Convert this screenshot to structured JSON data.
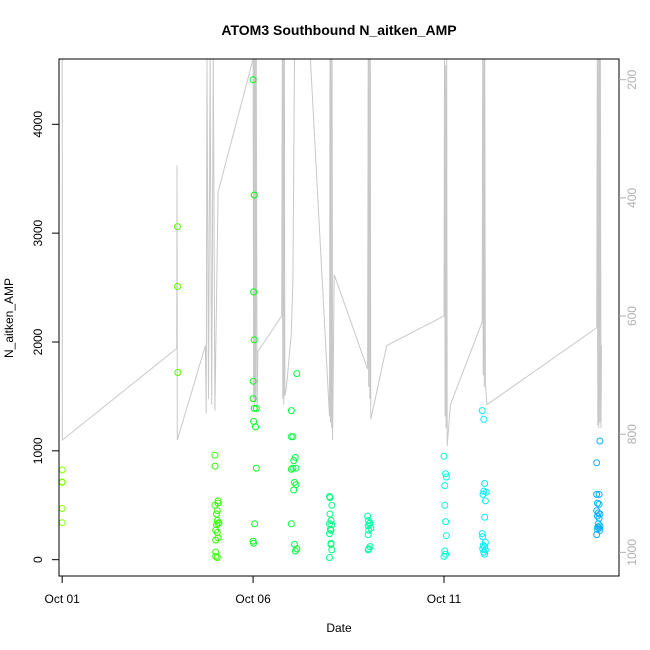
{
  "chart_data": {
    "type": "scatter",
    "title": "ATOM3 Southbound N_aitken_AMP",
    "xlabel": "Date",
    "ylabel": "N_aitken_AMP",
    "xlim": [
      "2016-09-30T22:00",
      "2016-10-15T14:00"
    ],
    "ylim": [
      -150,
      4600
    ],
    "x_ticks": [
      {
        "date": "2016-10-01",
        "label": "Oct 01"
      },
      {
        "date": "2016-10-06",
        "label": "Oct 06"
      },
      {
        "date": "2016-10-11",
        "label": "Oct 11"
      }
    ],
    "y_ticks": [
      0,
      1000,
      2000,
      3000,
      4000
    ],
    "right_axis": {
      "quantity": "pressure",
      "reversed": true,
      "range": [
        1040,
        165
      ],
      "ticks": [
        200,
        400,
        600,
        800,
        1000
      ],
      "line_color": "#c8c8c8"
    },
    "grid": false,
    "legend": "none",
    "point_colors": {
      "Oct 01": "#80ff00",
      "Oct 04": "#55ff00",
      "Oct 05": "#33ff00",
      "Oct 06": "#00ff1a",
      "Oct 07": "#00ff40",
      "Oct 08": "#00ff80",
      "Oct 09": "#00ffa0",
      "Oct 11": "#00ffe0",
      "Oct 12": "#00f0ff",
      "Oct 15": "#00b0ff"
    },
    "points": [
      {
        "t": "2016-10-01T00:00",
        "y": 710,
        "c": "Oct 01"
      },
      {
        "t": "2016-10-01T00:00",
        "y": 715,
        "c": "Oct 01"
      },
      {
        "t": "2016-10-01T00:00",
        "y": 470,
        "c": "Oct 01"
      },
      {
        "t": "2016-10-01T00:00",
        "y": 340,
        "c": "Oct 01"
      },
      {
        "t": "2016-10-01T00:05",
        "y": 825,
        "c": "Oct 01"
      },
      {
        "t": "2016-10-04T00:30",
        "y": 3060,
        "c": "Oct 04"
      },
      {
        "t": "2016-10-04T00:30",
        "y": 2510,
        "c": "Oct 04"
      },
      {
        "t": "2016-10-04T00:40",
        "y": 1720,
        "c": "Oct 04"
      },
      {
        "t": "2016-10-05T00:00",
        "y": 960,
        "c": "Oct 05"
      },
      {
        "t": "2016-10-05T00:05",
        "y": 860,
        "c": "Oct 05"
      },
      {
        "t": "2016-10-05T00:00",
        "y": 500,
        "c": "Oct 05"
      },
      {
        "t": "2016-10-05T02:00",
        "y": 540,
        "c": "Oct 05"
      },
      {
        "t": "2016-10-05T02:00",
        "y": 520,
        "c": "Oct 05"
      },
      {
        "t": "2016-10-05T01:30",
        "y": 450,
        "c": "Oct 05"
      },
      {
        "t": "2016-10-05T01:00",
        "y": 420,
        "c": "Oct 05"
      },
      {
        "t": "2016-10-05T01:30",
        "y": 360,
        "c": "Oct 05"
      },
      {
        "t": "2016-10-05T02:00",
        "y": 330,
        "c": "Oct 05"
      },
      {
        "t": "2016-10-05T01:00",
        "y": 320,
        "c": "Oct 05"
      },
      {
        "t": "2016-10-05T02:30",
        "y": 340,
        "c": "Oct 05"
      },
      {
        "t": "2016-10-05T00:30",
        "y": 270,
        "c": "Oct 05"
      },
      {
        "t": "2016-10-05T01:30",
        "y": 250,
        "c": "Oct 05"
      },
      {
        "t": "2016-10-05T02:00",
        "y": 200,
        "c": "Oct 05"
      },
      {
        "t": "2016-10-05T00:30",
        "y": 180,
        "c": "Oct 05"
      },
      {
        "t": "2016-10-05T00:30",
        "y": 70,
        "c": "Oct 05"
      },
      {
        "t": "2016-10-05T00:30",
        "y": 30,
        "c": "Oct 05"
      },
      {
        "t": "2016-10-05T01:30",
        "y": 20,
        "c": "Oct 05"
      },
      {
        "t": "2016-10-06T00:00",
        "y": 4410,
        "c": "Oct 06"
      },
      {
        "t": "2016-10-06T00:40",
        "y": 3350,
        "c": "Oct 06"
      },
      {
        "t": "2016-10-06T00:20",
        "y": 2460,
        "c": "Oct 06"
      },
      {
        "t": "2016-10-06T00:40",
        "y": 2020,
        "c": "Oct 06"
      },
      {
        "t": "2016-10-06T00:00",
        "y": 1640,
        "c": "Oct 06"
      },
      {
        "t": "2016-10-06T00:00",
        "y": 1480,
        "c": "Oct 06"
      },
      {
        "t": "2016-10-06T02:00",
        "y": 1390,
        "c": "Oct 06"
      },
      {
        "t": "2016-10-06T00:40",
        "y": 1390,
        "c": "Oct 06"
      },
      {
        "t": "2016-10-06T00:20",
        "y": 1270,
        "c": "Oct 06"
      },
      {
        "t": "2016-10-06T01:30",
        "y": 1220,
        "c": "Oct 06"
      },
      {
        "t": "2016-10-06T02:00",
        "y": 840,
        "c": "Oct 06"
      },
      {
        "t": "2016-10-06T01:00",
        "y": 330,
        "c": "Oct 06"
      },
      {
        "t": "2016-10-06T00:00",
        "y": 170,
        "c": "Oct 06"
      },
      {
        "t": "2016-10-06T00:20",
        "y": 150,
        "c": "Oct 06"
      },
      {
        "t": "2016-10-07T00:00",
        "y": 1370,
        "c": "Oct 07"
      },
      {
        "t": "2016-10-07T00:00",
        "y": 1130,
        "c": "Oct 07"
      },
      {
        "t": "2016-10-07T01:00",
        "y": 1130,
        "c": "Oct 07"
      },
      {
        "t": "2016-10-07T02:30",
        "y": 940,
        "c": "Oct 07"
      },
      {
        "t": "2016-10-07T01:30",
        "y": 910,
        "c": "Oct 07"
      },
      {
        "t": "2016-10-07T01:00",
        "y": 840,
        "c": "Oct 07"
      },
      {
        "t": "2016-10-07T03:00",
        "y": 840,
        "c": "Oct 07"
      },
      {
        "t": "2016-10-07T00:00",
        "y": 830,
        "c": "Oct 07"
      },
      {
        "t": "2016-10-07T03:30",
        "y": 1710,
        "c": "Oct 07"
      },
      {
        "t": "2016-10-07T02:00",
        "y": 710,
        "c": "Oct 07"
      },
      {
        "t": "2016-10-07T03:00",
        "y": 690,
        "c": "Oct 07"
      },
      {
        "t": "2016-10-07T01:30",
        "y": 640,
        "c": "Oct 07"
      },
      {
        "t": "2016-10-07T00:00",
        "y": 330,
        "c": "Oct 07"
      },
      {
        "t": "2016-10-07T02:00",
        "y": 140,
        "c": "Oct 07"
      },
      {
        "t": "2016-10-07T03:30",
        "y": 100,
        "c": "Oct 07"
      },
      {
        "t": "2016-10-07T02:30",
        "y": 80,
        "c": "Oct 07"
      },
      {
        "t": "2016-10-08T00:00",
        "y": 580,
        "c": "Oct 08"
      },
      {
        "t": "2016-10-08T00:20",
        "y": 570,
        "c": "Oct 08"
      },
      {
        "t": "2016-10-08T01:30",
        "y": 500,
        "c": "Oct 08"
      },
      {
        "t": "2016-10-08T00:20",
        "y": 420,
        "c": "Oct 08"
      },
      {
        "t": "2016-10-08T01:00",
        "y": 360,
        "c": "Oct 08"
      },
      {
        "t": "2016-10-08T00:00",
        "y": 330,
        "c": "Oct 08"
      },
      {
        "t": "2016-10-08T01:30",
        "y": 320,
        "c": "Oct 08"
      },
      {
        "t": "2016-10-08T00:40",
        "y": 280,
        "c": "Oct 08"
      },
      {
        "t": "2016-10-08T01:00",
        "y": 270,
        "c": "Oct 08"
      },
      {
        "t": "2016-10-08T00:00",
        "y": 240,
        "c": "Oct 08"
      },
      {
        "t": "2016-10-08T01:00",
        "y": 150,
        "c": "Oct 08"
      },
      {
        "t": "2016-10-08T01:00",
        "y": 140,
        "c": "Oct 08"
      },
      {
        "t": "2016-10-08T01:30",
        "y": 90,
        "c": "Oct 08"
      },
      {
        "t": "2016-10-08T00:00",
        "y": 20,
        "c": "Oct 08"
      },
      {
        "t": "2016-10-09T00:00",
        "y": 400,
        "c": "Oct 09"
      },
      {
        "t": "2016-10-09T00:30",
        "y": 360,
        "c": "Oct 09"
      },
      {
        "t": "2016-10-09T01:30",
        "y": 340,
        "c": "Oct 09"
      },
      {
        "t": "2016-10-09T01:00",
        "y": 330,
        "c": "Oct 09"
      },
      {
        "t": "2016-10-09T00:20",
        "y": 310,
        "c": "Oct 09"
      },
      {
        "t": "2016-10-09T02:00",
        "y": 290,
        "c": "Oct 09"
      },
      {
        "t": "2016-10-09T00:40",
        "y": 270,
        "c": "Oct 09"
      },
      {
        "t": "2016-10-09T00:20",
        "y": 230,
        "c": "Oct 09"
      },
      {
        "t": "2016-10-09T01:30",
        "y": 120,
        "c": "Oct 09"
      },
      {
        "t": "2016-10-09T00:40",
        "y": 100,
        "c": "Oct 09"
      },
      {
        "t": "2016-10-09T00:20",
        "y": 90,
        "c": "Oct 09"
      },
      {
        "t": "2016-10-11T00:00",
        "y": 950,
        "c": "Oct 11"
      },
      {
        "t": "2016-10-11T01:00",
        "y": 790,
        "c": "Oct 11"
      },
      {
        "t": "2016-10-11T01:30",
        "y": 760,
        "c": "Oct 11"
      },
      {
        "t": "2016-10-11T00:30",
        "y": 680,
        "c": "Oct 11"
      },
      {
        "t": "2016-10-11T00:30",
        "y": 500,
        "c": "Oct 11"
      },
      {
        "t": "2016-10-11T01:00",
        "y": 350,
        "c": "Oct 11"
      },
      {
        "t": "2016-10-11T01:30",
        "y": 220,
        "c": "Oct 11"
      },
      {
        "t": "2016-10-11T00:30",
        "y": 80,
        "c": "Oct 11"
      },
      {
        "t": "2016-10-11T01:00",
        "y": 50,
        "c": "Oct 11"
      },
      {
        "t": "2016-10-11T00:00",
        "y": 30,
        "c": "Oct 11"
      },
      {
        "t": "2016-10-12T00:00",
        "y": 1370,
        "c": "Oct 12"
      },
      {
        "t": "2016-10-12T01:00",
        "y": 1290,
        "c": "Oct 12"
      },
      {
        "t": "2016-10-12T01:30",
        "y": 700,
        "c": "Oct 12"
      },
      {
        "t": "2016-10-12T01:00",
        "y": 630,
        "c": "Oct 12"
      },
      {
        "t": "2016-10-12T02:30",
        "y": 620,
        "c": "Oct 12"
      },
      {
        "t": "2016-10-12T00:30",
        "y": 600,
        "c": "Oct 12"
      },
      {
        "t": "2016-10-12T02:00",
        "y": 540,
        "c": "Oct 12"
      },
      {
        "t": "2016-10-12T01:30",
        "y": 390,
        "c": "Oct 12"
      },
      {
        "t": "2016-10-12T00:00",
        "y": 240,
        "c": "Oct 12"
      },
      {
        "t": "2016-10-12T00:20",
        "y": 210,
        "c": "Oct 12"
      },
      {
        "t": "2016-10-12T02:00",
        "y": 160,
        "c": "Oct 12"
      },
      {
        "t": "2016-10-12T00:40",
        "y": 130,
        "c": "Oct 12"
      },
      {
        "t": "2016-10-12T01:30",
        "y": 120,
        "c": "Oct 12"
      },
      {
        "t": "2016-10-12T00:20",
        "y": 100,
        "c": "Oct 12"
      },
      {
        "t": "2016-10-12T02:00",
        "y": 90,
        "c": "Oct 12"
      },
      {
        "t": "2016-10-12T01:00",
        "y": 70,
        "c": "Oct 12"
      },
      {
        "t": "2016-10-12T01:30",
        "y": 50,
        "c": "Oct 12"
      },
      {
        "t": "2016-10-15T00:00",
        "y": 890,
        "c": "Oct 15"
      },
      {
        "t": "2016-10-15T02:00",
        "y": 1090,
        "c": "Oct 15"
      },
      {
        "t": "2016-10-15T00:00",
        "y": 600,
        "c": "Oct 15"
      },
      {
        "t": "2016-10-15T01:30",
        "y": 600,
        "c": "Oct 15"
      },
      {
        "t": "2016-10-15T00:30",
        "y": 520,
        "c": "Oct 15"
      },
      {
        "t": "2016-10-15T01:30",
        "y": 510,
        "c": "Oct 15"
      },
      {
        "t": "2016-10-15T00:00",
        "y": 450,
        "c": "Oct 15"
      },
      {
        "t": "2016-10-15T01:00",
        "y": 430,
        "c": "Oct 15"
      },
      {
        "t": "2016-10-15T02:00",
        "y": 420,
        "c": "Oct 15"
      },
      {
        "t": "2016-10-15T00:30",
        "y": 400,
        "c": "Oct 15"
      },
      {
        "t": "2016-10-15T01:30",
        "y": 380,
        "c": "Oct 15"
      },
      {
        "t": "2016-10-15T01:00",
        "y": 330,
        "c": "Oct 15"
      },
      {
        "t": "2016-10-15T02:00",
        "y": 310,
        "c": "Oct 15"
      },
      {
        "t": "2016-10-15T00:40",
        "y": 300,
        "c": "Oct 15"
      },
      {
        "t": "2016-10-15T01:30",
        "y": 290,
        "c": "Oct 15"
      },
      {
        "t": "2016-10-15T00:20",
        "y": 280,
        "c": "Oct 15"
      },
      {
        "t": "2016-10-15T02:00",
        "y": 270,
        "c": "Oct 15"
      },
      {
        "t": "2016-10-15T00:00",
        "y": 230,
        "c": "Oct 15"
      }
    ],
    "pressure_trace": [
      [
        "2016-10-01T00:00",
        165
      ],
      [
        "2016-10-01T00:05",
        810
      ],
      [
        "2016-10-04T00:00",
        655
      ],
      [
        "2016-10-04T00:10",
        345
      ],
      [
        "2016-10-04T00:20",
        810
      ],
      [
        "2016-10-04T18:00",
        650
      ],
      [
        "2016-10-04T18:30",
        765
      ],
      [
        "2016-10-04T19:00",
        165
      ],
      [
        "2016-10-04T20:00",
        740
      ],
      [
        "2016-10-04T21:00",
        165
      ],
      [
        "2016-10-04T22:00",
        750
      ],
      [
        "2016-10-04T23:00",
        165
      ],
      [
        "2016-10-05T00:00",
        760
      ],
      [
        "2016-10-05T02:00",
        390
      ],
      [
        "2016-10-06T00:00",
        165
      ],
      [
        "2016-10-06T00:20",
        740
      ],
      [
        "2016-10-06T00:40",
        165
      ],
      [
        "2016-10-06T01:00",
        750
      ],
      [
        "2016-10-06T01:20",
        165
      ],
      [
        "2016-10-06T01:40",
        745
      ],
      [
        "2016-10-06T02:00",
        165
      ],
      [
        "2016-10-06T02:30",
        760
      ],
      [
        "2016-10-06T03:00",
        660
      ],
      [
        "2016-10-06T18:00",
        600
      ],
      [
        "2016-10-06T18:20",
        165
      ],
      [
        "2016-10-06T18:40",
        740
      ],
      [
        "2016-10-06T19:00",
        165
      ],
      [
        "2016-10-06T19:20",
        750
      ],
      [
        "2016-10-06T19:40",
        165
      ],
      [
        "2016-10-06T20:00",
        735
      ],
      [
        "2016-10-06T21:00",
        720
      ],
      [
        "2016-10-07T00:00",
        630
      ],
      [
        "2016-10-07T01:00",
        540
      ],
      [
        "2016-10-07T02:00",
        165
      ],
      [
        "2016-10-07T12:00",
        165
      ],
      [
        "2016-10-08T00:00",
        770
      ],
      [
        "2016-10-08T00:20",
        165
      ],
      [
        "2016-10-08T00:40",
        780
      ],
      [
        "2016-10-08T01:00",
        165
      ],
      [
        "2016-10-08T01:20",
        790
      ],
      [
        "2016-10-08T01:40",
        165
      ],
      [
        "2016-10-08T02:00",
        810
      ],
      [
        "2016-10-08T03:00",
        530
      ],
      [
        "2016-10-09T00:00",
        690
      ],
      [
        "2016-10-09T00:20",
        165
      ],
      [
        "2016-10-09T00:40",
        720
      ],
      [
        "2016-10-09T01:00",
        165
      ],
      [
        "2016-10-09T01:20",
        740
      ],
      [
        "2016-10-09T01:40",
        165
      ],
      [
        "2016-10-09T02:00",
        775
      ],
      [
        "2016-10-09T12:00",
        650
      ],
      [
        "2016-10-11T00:00",
        600
      ],
      [
        "2016-10-11T00:20",
        165
      ],
      [
        "2016-10-11T00:40",
        770
      ],
      [
        "2016-10-11T01:00",
        175
      ],
      [
        "2016-10-11T01:20",
        790
      ],
      [
        "2016-10-11T01:40",
        165
      ],
      [
        "2016-10-11T02:00",
        820
      ],
      [
        "2016-10-11T04:00",
        750
      ],
      [
        "2016-10-12T00:00",
        610
      ],
      [
        "2016-10-12T00:20",
        165
      ],
      [
        "2016-10-12T00:40",
        700
      ],
      [
        "2016-10-12T01:00",
        165
      ],
      [
        "2016-10-12T01:20",
        720
      ],
      [
        "2016-10-12T01:40",
        165
      ],
      [
        "2016-10-12T02:00",
        715
      ],
      [
        "2016-10-12T03:00",
        750
      ],
      [
        "2016-10-15T00:00",
        620
      ],
      [
        "2016-10-15T00:20",
        165
      ],
      [
        "2016-10-15T00:40",
        785
      ],
      [
        "2016-10-15T01:00",
        165
      ],
      [
        "2016-10-15T01:20",
        790
      ],
      [
        "2016-10-15T01:40",
        165
      ],
      [
        "2016-10-15T02:00",
        780
      ],
      [
        "2016-10-15T02:20",
        165
      ],
      [
        "2016-10-15T02:40",
        790
      ],
      [
        "2016-10-15T03:00",
        650
      ]
    ]
  }
}
